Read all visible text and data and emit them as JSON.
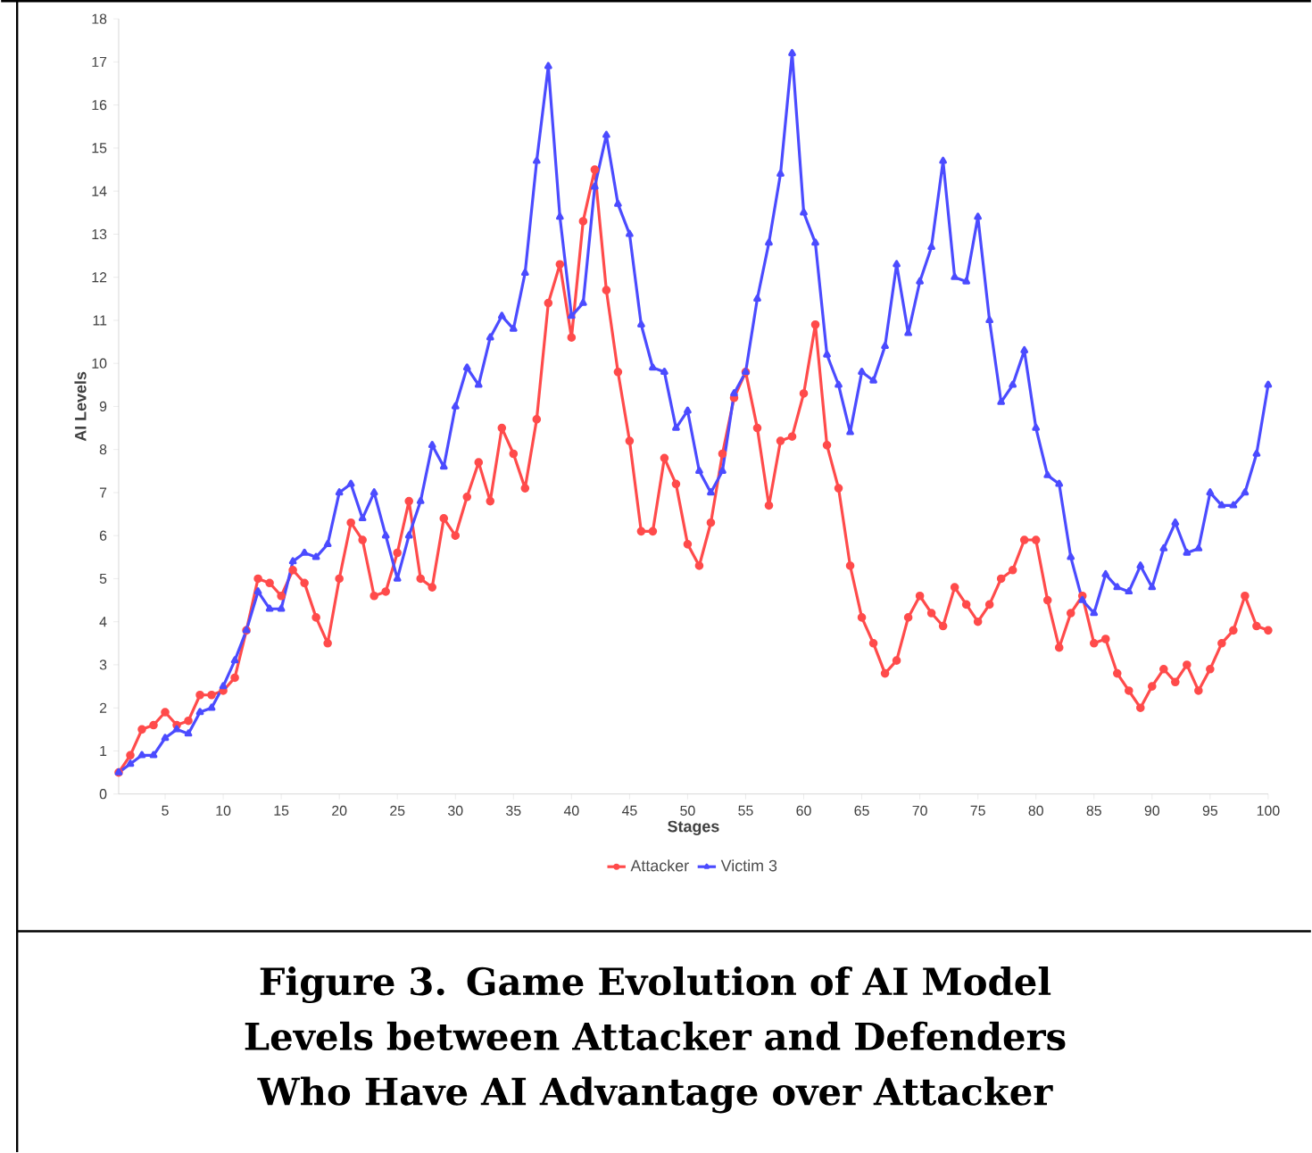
{
  "chart_data": {
    "type": "line",
    "xlabel": "Stages",
    "ylabel": "AI Levels",
    "annotations": [
      "Figure 3.  Game Evolution of AI Model Levels between Attacker and Defenders Who Have AI Advantage over Attacker"
    ],
    "x": [
      1,
      2,
      3,
      4,
      5,
      6,
      7,
      8,
      9,
      10,
      11,
      12,
      13,
      14,
      15,
      16,
      17,
      18,
      19,
      20,
      21,
      22,
      23,
      24,
      25,
      26,
      27,
      28,
      29,
      30,
      31,
      32,
      33,
      34,
      35,
      36,
      37,
      38,
      39,
      40,
      41,
      42,
      43,
      44,
      45,
      46,
      47,
      48,
      49,
      50,
      51,
      52,
      53,
      54,
      55,
      56,
      57,
      58,
      59,
      60,
      61,
      62,
      63,
      64,
      65,
      66,
      67,
      68,
      69,
      70,
      71,
      72,
      73,
      74,
      75,
      76,
      77,
      78,
      79,
      80,
      81,
      82,
      83,
      84,
      85,
      86,
      87,
      88,
      89,
      90,
      91,
      92,
      93,
      94,
      95,
      96,
      97,
      98,
      99,
      100
    ],
    "xlim": [
      1,
      100
    ],
    "xticks": [
      5,
      10,
      15,
      20,
      25,
      30,
      35,
      40,
      45,
      50,
      55,
      60,
      65,
      70,
      75,
      80,
      85,
      90,
      95,
      100
    ],
    "ylim": [
      0,
      18
    ],
    "yticks": [
      0,
      1,
      2,
      3,
      4,
      5,
      6,
      7,
      8,
      9,
      10,
      11,
      12,
      13,
      14,
      15,
      16,
      17,
      18
    ],
    "grid": false,
    "legend": "bottom",
    "line_style": "solid",
    "series": [
      {
        "name": "Attacker",
        "color": "#ff4b4b",
        "marker": "circle",
        "values": [
          0.5,
          0.9,
          1.5,
          1.6,
          1.9,
          1.6,
          1.7,
          2.3,
          2.3,
          2.4,
          2.7,
          3.8,
          5.0,
          4.9,
          4.6,
          5.2,
          4.9,
          4.1,
          3.5,
          5.0,
          6.3,
          5.9,
          4.6,
          4.7,
          5.6,
          6.8,
          5.0,
          4.8,
          6.4,
          6.0,
          6.9,
          7.7,
          6.8,
          8.5,
          7.9,
          7.1,
          8.7,
          11.4,
          12.3,
          10.6,
          13.3,
          14.5,
          11.7,
          9.8,
          8.2,
          6.1,
          6.1,
          7.8,
          7.2,
          5.8,
          5.3,
          6.3,
          7.9,
          9.2,
          9.8,
          8.5,
          6.7,
          8.2,
          8.3,
          9.3,
          10.9,
          8.1,
          7.1,
          5.3,
          4.1,
          3.5,
          2.8,
          3.1,
          4.1,
          4.6,
          4.2,
          3.9,
          4.8,
          4.4,
          4.0,
          4.4,
          5.0,
          5.2,
          5.9,
          5.9,
          4.5,
          3.4,
          4.2,
          4.6,
          3.5,
          3.6,
          2.8,
          2.4,
          2.0,
          2.5,
          2.9,
          2.6,
          3.0,
          2.4,
          2.9,
          3.5,
          3.8,
          4.6,
          3.9,
          3.8
        ]
      },
      {
        "name": "Victim 3",
        "color": "#4b4bff",
        "marker": "triangle",
        "values": [
          0.5,
          0.7,
          0.9,
          0.9,
          1.3,
          1.5,
          1.4,
          1.9,
          2.0,
          2.5,
          3.1,
          3.8,
          4.7,
          4.3,
          4.3,
          5.4,
          5.6,
          5.5,
          5.8,
          7.0,
          7.2,
          6.4,
          7.0,
          6.0,
          5.0,
          6.0,
          6.8,
          8.1,
          7.6,
          9.0,
          9.9,
          9.5,
          10.6,
          11.1,
          10.8,
          12.1,
          14.7,
          16.9,
          13.4,
          11.1,
          11.4,
          14.1,
          15.3,
          13.7,
          13.0,
          10.9,
          9.9,
          9.8,
          8.5,
          8.9,
          7.5,
          7.0,
          7.5,
          9.3,
          9.8,
          11.5,
          12.8,
          14.4,
          17.2,
          13.5,
          12.8,
          10.2,
          9.5,
          8.4,
          9.8,
          9.6,
          10.4,
          12.3,
          10.7,
          11.9,
          12.7,
          14.7,
          12.0,
          11.9,
          13.4,
          11.0,
          9.1,
          9.5,
          10.3,
          8.5,
          7.4,
          7.2,
          5.5,
          4.5,
          4.2,
          5.1,
          4.8,
          4.7,
          5.3,
          4.8,
          5.7,
          6.3,
          5.6,
          5.7,
          7.0,
          6.7,
          6.7,
          7.0,
          7.9,
          9.5
        ]
      }
    ]
  }
}
